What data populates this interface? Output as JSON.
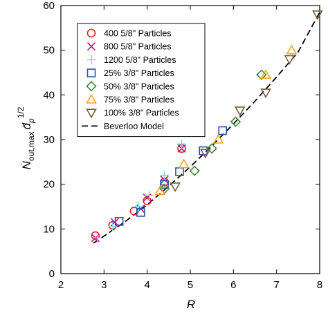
{
  "chart_data": {
    "type": "scatter",
    "xlabel": "R",
    "ylabel_parts": {
      "main": "Ṅ",
      "sub": "out,max",
      "dbar": "d̄",
      "dsub": "p",
      "exp": "1/2"
    },
    "xlim": [
      2,
      8
    ],
    "ylim": [
      0,
      60
    ],
    "xticks": [
      2,
      3,
      4,
      5,
      6,
      7,
      8
    ],
    "yticks": [
      0,
      10,
      20,
      30,
      40,
      50,
      60
    ],
    "legend_position": "top-left",
    "grid": false,
    "series": [
      {
        "name": "400 5/8\" Particles",
        "marker": "circle",
        "color": "#e0211f",
        "points": [
          [
            2.8,
            8.5
          ],
          [
            3.2,
            10.8
          ],
          [
            3.7,
            14.0
          ],
          [
            4.0,
            16.3
          ],
          [
            4.4,
            20.5
          ],
          [
            4.8,
            28.0
          ]
        ]
      },
      {
        "name": "800 5/8\" Particles",
        "marker": "x",
        "color": "#b5177a",
        "points": [
          [
            2.8,
            8.0
          ],
          [
            3.25,
            11.5
          ],
          [
            3.85,
            14.5
          ],
          [
            4.0,
            17.0
          ],
          [
            4.4,
            21.0
          ],
          [
            4.8,
            28.0
          ]
        ]
      },
      {
        "name": "1200 5/8\" Particles",
        "marker": "plus",
        "color": "#8ecff0",
        "points": [
          [
            2.85,
            8.0
          ],
          [
            3.2,
            10.5
          ],
          [
            3.8,
            15.0
          ],
          [
            4.05,
            17.5
          ],
          [
            4.4,
            22.0
          ],
          [
            4.8,
            29.0
          ]
        ]
      },
      {
        "name": "25% 3/8\" Particles",
        "marker": "square",
        "color": "#2b52a6",
        "points": [
          [
            3.35,
            11.7
          ],
          [
            3.85,
            13.7
          ],
          [
            4.4,
            20.0
          ],
          [
            4.75,
            22.8
          ],
          [
            5.3,
            27.5
          ],
          [
            5.75,
            32.0
          ]
        ]
      },
      {
        "name": "50% 3/8\" Particles",
        "marker": "diamond",
        "color": "#3b8a2e",
        "points": [
          [
            4.4,
            19.0
          ],
          [
            5.1,
            23.0
          ],
          [
            5.5,
            28.0
          ],
          [
            6.05,
            34.0
          ],
          [
            6.65,
            44.5
          ]
        ]
      },
      {
        "name": "75% 3/8\" Particles",
        "marker": "triangle-up",
        "color": "#f4a526",
        "points": [
          [
            4.3,
            18.5
          ],
          [
            4.85,
            24.5
          ],
          [
            5.65,
            30.0
          ],
          [
            6.75,
            44.5
          ],
          [
            7.35,
            50.0
          ]
        ]
      },
      {
        "name": "100% 3/8\" Particles",
        "marker": "triangle-down",
        "color": "#7a5a3e",
        "points": [
          [
            4.65,
            19.5
          ],
          [
            5.35,
            27.0
          ],
          [
            6.15,
            36.5
          ],
          [
            6.75,
            40.5
          ],
          [
            7.3,
            48.0
          ],
          [
            7.95,
            58.0
          ]
        ]
      }
    ],
    "model": {
      "name": "Beverloo Model",
      "style": "dashed",
      "color": "#000000",
      "points": [
        [
          2.75,
          6.8
        ],
        [
          3.0,
          8.4
        ],
        [
          3.5,
          11.7
        ],
        [
          4.0,
          15.4
        ],
        [
          4.5,
          19.6
        ],
        [
          5.0,
          23.9
        ],
        [
          5.5,
          28.6
        ],
        [
          6.0,
          33.5
        ],
        [
          6.5,
          38.6
        ],
        [
          7.0,
          44.0
        ],
        [
          7.5,
          49.6
        ],
        [
          8.0,
          58.5
        ]
      ]
    }
  }
}
